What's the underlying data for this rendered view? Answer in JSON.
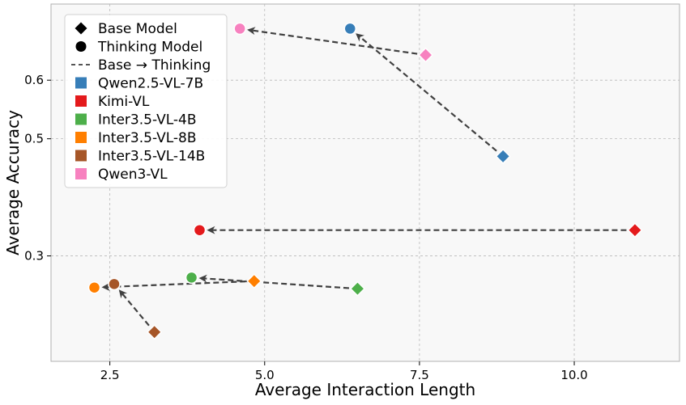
{
  "chart_data": {
    "type": "scatter",
    "title": "",
    "xlabel": "Average Interaction Length",
    "ylabel": "Average Accuracy",
    "xlim": [
      1.55,
      11.7
    ],
    "ylim": [
      0.12,
      0.73
    ],
    "xticks": [
      2.5,
      5.0,
      7.5,
      10.0
    ],
    "xtick_labels": [
      "2.5",
      "5.0",
      "7.5",
      "10.0"
    ],
    "yticks": [
      0.3,
      0.5,
      0.6
    ],
    "ytick_labels": [
      "0.3",
      "0.5",
      "0.6"
    ],
    "grid": true,
    "legend_position": "top-left",
    "legend": {
      "markers": [
        {
          "label": "Base Model",
          "shape": "diamond"
        },
        {
          "label": "Thinking Model",
          "shape": "circle"
        },
        {
          "label": "Base → Thinking",
          "shape": "dashed-arrow"
        }
      ]
    },
    "series": [
      {
        "name": "Qwen2.5-VL-7B",
        "color": "#377eb8",
        "base": {
          "x": 8.85,
          "y": 0.47
        },
        "thinking": {
          "x": 6.38,
          "y": 0.688
        }
      },
      {
        "name": "Kimi-VL",
        "color": "#e41a1c",
        "base": {
          "x": 10.98,
          "y": 0.344
        },
        "thinking": {
          "x": 3.95,
          "y": 0.344
        }
      },
      {
        "name": "Inter3.5-VL-4B",
        "color": "#4daf4a",
        "base": {
          "x": 6.5,
          "y": 0.244
        },
        "thinking": {
          "x": 3.82,
          "y": 0.263
        }
      },
      {
        "name": "Inter3.5-VL-8B",
        "color": "#ff7f00",
        "base": {
          "x": 4.83,
          "y": 0.257
        },
        "thinking": {
          "x": 2.25,
          "y": 0.246
        }
      },
      {
        "name": "Inter3.5-VL-14B",
        "color": "#a65628",
        "base": {
          "x": 3.22,
          "y": 0.17
        },
        "thinking": {
          "x": 2.57,
          "y": 0.252
        }
      },
      {
        "name": "Qwen3-VL",
        "color": "#f781bf",
        "base": {
          "x": 7.6,
          "y": 0.643
        },
        "thinking": {
          "x": 4.6,
          "y": 0.688
        }
      }
    ]
  }
}
